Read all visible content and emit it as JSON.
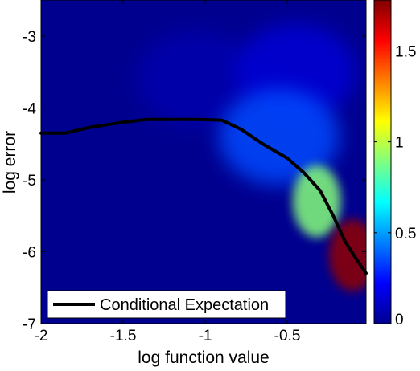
{
  "chart_data": {
    "type": "heatmap",
    "xlabel": "log function value",
    "ylabel": "log error",
    "xlim": [
      -2.0,
      -0.02
    ],
    "ylim": [
      -7.0,
      -2.5
    ],
    "x_ticks": [
      -2,
      -1.5,
      -1,
      -0.5
    ],
    "x_tick_labels": [
      "-2",
      "-1.5",
      "-1",
      "-0.5"
    ],
    "y_ticks": [
      -7,
      -6,
      -5,
      -4,
      -3
    ],
    "y_tick_labels": [
      "-7",
      "-6",
      "-5",
      "-4",
      "-3"
    ],
    "colorbar": {
      "colormap": "jet",
      "range": [
        0,
        1.78
      ],
      "ticks": [
        0,
        0.5,
        1,
        1.5
      ],
      "tick_labels": [
        "0",
        "0.5",
        "1",
        "1.5"
      ]
    },
    "density_peaks": [
      {
        "x": -0.1,
        "y": -6.05,
        "value": 1.75
      },
      {
        "x": -0.32,
        "y": -5.3,
        "value": 0.9
      },
      {
        "x": -0.55,
        "y": -4.4,
        "value": 0.35
      },
      {
        "x": -0.45,
        "y": -3.5,
        "value": 0.15
      },
      {
        "x": -1.05,
        "y": -3.6,
        "value": 0.08
      }
    ],
    "series": [
      {
        "name": "Conditional Expectation",
        "color": "#000000",
        "x": [
          -2.0,
          -1.85,
          -1.7,
          -1.5,
          -1.35,
          -1.2,
          -1.05,
          -0.9,
          -0.78,
          -0.65,
          -0.5,
          -0.4,
          -0.3,
          -0.22,
          -0.15,
          -0.08,
          -0.02
        ],
        "y": [
          -4.35,
          -4.35,
          -4.27,
          -4.2,
          -4.16,
          -4.16,
          -4.16,
          -4.17,
          -4.3,
          -4.5,
          -4.7,
          -4.9,
          -5.15,
          -5.5,
          -5.85,
          -6.1,
          -6.3
        ]
      }
    ],
    "legend": {
      "position": "bottom-left",
      "entries": [
        "Conditional Expectation"
      ]
    },
    "grid": false
  }
}
